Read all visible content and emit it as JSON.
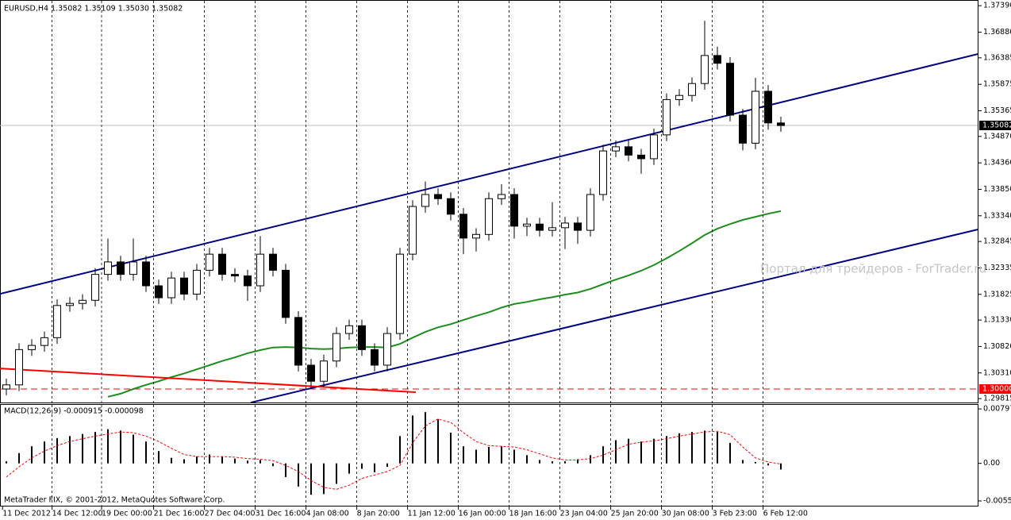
{
  "chart_data": [
    {
      "type": "candlestick",
      "header": "EURUSD,H4  1.35082 1.35109 1.35030 1.35082",
      "watermark": "Портал для трейдеров - ForTrader.ru",
      "xlim": [
        -0.5,
        76.5
      ],
      "xticks": [
        {
          "value": -0.3,
          "label": "11 Dec 2012"
        },
        {
          "value": 3.6,
          "label": "14 Dec 12:00"
        },
        {
          "value": 7.5,
          "label": "19 Dec 00:00"
        },
        {
          "value": 11.6,
          "label": "21 Dec 16:00"
        },
        {
          "value": 15.6,
          "label": "27 Dec 04:00"
        },
        {
          "value": 19.6,
          "label": "31 Dec 16:00"
        },
        {
          "value": 23.6,
          "label": "4 Jan 08:00"
        },
        {
          "value": 27.6,
          "label": "8 Jan 20:00"
        },
        {
          "value": 31.6,
          "label": "11 Jan 12:00"
        },
        {
          "value": 35.6,
          "label": "16 Jan 00:00"
        },
        {
          "value": 39.6,
          "label": "18 Jan 16:00"
        },
        {
          "value": 43.6,
          "label": "23 Jan 04:00"
        },
        {
          "value": 47.6,
          "label": "25 Jan 20:00"
        },
        {
          "value": 51.6,
          "label": "30 Jan 08:00"
        },
        {
          "value": 55.6,
          "label": "3 Feb 23:00"
        },
        {
          "value": 59.6,
          "label": "6 Feb 12:00"
        }
      ],
      "ylim": [
        1.2974,
        1.375
      ],
      "yticks": [
        {
          "value": 1.3739,
          "label": "1.37390"
        },
        {
          "value": 1.3688,
          "label": "1.36880"
        },
        1.36385,
        1.35875,
        1.35365,
        {
          "value": 1.3487,
          "label": "1.34870"
        },
        {
          "value": 1.3436,
          "label": "1.34360"
        },
        {
          "value": 1.3385,
          "label": "1.33850"
        },
        {
          "value": 1.3334,
          "label": "1.33340"
        },
        1.32845,
        1.32335,
        1.31825,
        {
          "value": 1.3133,
          "label": "1.31330"
        },
        {
          "value": 1.3082,
          "label": "1.30820"
        },
        {
          "value": 1.3031,
          "label": "1.30310"
        },
        1.29815
      ],
      "grid": true,
      "up_color": "#ffffff",
      "down_color": "#000000",
      "open": [
        1.3,
        1.3008,
        1.3076,
        1.3084,
        1.3099,
        1.3161,
        1.3165,
        1.3171,
        1.3221,
        1.3245,
        1.3221,
        1.3245,
        1.3199,
        1.3176,
        1.3214,
        1.3183,
        1.3229,
        1.326,
        1.3221,
        1.3218,
        1.3199,
        1.326,
        1.3229,
        1.3138,
        1.3046,
        1.3015,
        1.3054,
        1.3107,
        1.3122,
        1.3076,
        1.3046,
        1.3107,
        1.326,
        1.3352,
        1.3375,
        1.3367,
        1.3337,
        1.3291,
        1.3298,
        1.3367,
        1.3375,
        1.3314,
        1.3318,
        1.3306,
        1.3311,
        1.332,
        1.3306,
        1.3375,
        1.3459,
        1.3467,
        1.3451,
        1.3444,
        1.349,
        1.3558,
        1.3566,
        1.3589,
        1.3643,
        1.3628,
        1.3528,
        1.3474,
        1.3574,
        1.3513
      ],
      "high": [
        1.302,
        1.3088,
        1.3096,
        1.3111,
        1.3173,
        1.3177,
        1.3183,
        1.3233,
        1.329,
        1.3257,
        1.329,
        1.3257,
        1.3211,
        1.3226,
        1.3226,
        1.3241,
        1.3272,
        1.3272,
        1.3233,
        1.323,
        1.3295,
        1.3272,
        1.3241,
        1.315,
        1.3058,
        1.3066,
        1.3119,
        1.3134,
        1.3134,
        1.3088,
        1.3119,
        1.3272,
        1.3364,
        1.34,
        1.3387,
        1.3379,
        1.3349,
        1.331,
        1.3379,
        1.3395,
        1.3387,
        1.333,
        1.333,
        1.336,
        1.3332,
        1.3332,
        1.3387,
        1.3471,
        1.3479,
        1.3479,
        1.3463,
        1.3502,
        1.357,
        1.3578,
        1.3601,
        1.371,
        1.366,
        1.364,
        1.354,
        1.36,
        1.3586,
        1.3525
      ],
      "low": [
        1.2988,
        1.2996,
        1.3064,
        1.3072,
        1.3087,
        1.3149,
        1.3153,
        1.3159,
        1.3209,
        1.3209,
        1.3209,
        1.3187,
        1.3164,
        1.3164,
        1.3171,
        1.3171,
        1.3217,
        1.3209,
        1.3206,
        1.317,
        1.3187,
        1.3217,
        1.3126,
        1.3034,
        1.3,
        1.3003,
        1.3042,
        1.3095,
        1.3064,
        1.3034,
        1.3034,
        1.3095,
        1.3248,
        1.334,
        1.3355,
        1.3325,
        1.326,
        1.3265,
        1.3286,
        1.3355,
        1.329,
        1.3295,
        1.3294,
        1.3294,
        1.327,
        1.328,
        1.3294,
        1.3363,
        1.3447,
        1.3439,
        1.3415,
        1.3432,
        1.3478,
        1.3546,
        1.3554,
        1.3577,
        1.3616,
        1.3516,
        1.346,
        1.3462,
        1.35,
        1.3496
      ],
      "close": [
        1.3008,
        1.3076,
        1.3084,
        1.3099,
        1.3161,
        1.3165,
        1.3171,
        1.3221,
        1.3245,
        1.3221,
        1.3245,
        1.3199,
        1.3176,
        1.3214,
        1.3183,
        1.3229,
        1.326,
        1.3221,
        1.3218,
        1.3199,
        1.326,
        1.3229,
        1.3138,
        1.3046,
        1.3015,
        1.3054,
        1.3107,
        1.3122,
        1.3076,
        1.3046,
        1.3107,
        1.326,
        1.3352,
        1.3375,
        1.3367,
        1.3337,
        1.3291,
        1.3298,
        1.3367,
        1.3375,
        1.3314,
        1.3318,
        1.3306,
        1.3311,
        1.332,
        1.3306,
        1.3375,
        1.3459,
        1.3467,
        1.3451,
        1.3444,
        1.349,
        1.3558,
        1.3566,
        1.3589,
        1.3643,
        1.3628,
        1.3528,
        1.3474,
        1.3574,
        1.3513,
        1.3508
      ],
      "moving_average": {
        "color": "#1e8c1e",
        "values": [
          null,
          null,
          null,
          null,
          null,
          null,
          null,
          null,
          1.2985,
          1.2991,
          1.3,
          1.3008,
          1.3015,
          1.3023,
          1.303,
          1.3038,
          1.3046,
          1.3054,
          1.3061,
          1.3069,
          1.3075,
          1.308,
          1.3081,
          1.308,
          1.3078,
          1.3077,
          1.3078,
          1.308,
          1.3081,
          1.3081,
          1.308,
          1.3087,
          1.3099,
          1.311,
          1.3119,
          1.3125,
          1.3133,
          1.3141,
          1.3148,
          1.3157,
          1.3164,
          1.3168,
          1.3173,
          1.3177,
          1.3182,
          1.3186,
          1.3193,
          1.3202,
          1.3211,
          1.3219,
          1.3228,
          1.3239,
          1.3252,
          1.3266,
          1.3281,
          1.3297,
          1.3309,
          1.3318,
          1.3326,
          1.3332,
          1.3338,
          1.3343
        ]
      },
      "trend_lines": [
        {
          "color": "#000080",
          "from": [
            -0.5,
            1.31835
          ],
          "to": [
            76.5,
            1.36457
          ]
        },
        {
          "color": "#000080",
          "from": [
            19.25,
            1.29739
          ],
          "to": [
            76.5,
            1.33075
          ]
        },
        {
          "color": "#ff0000",
          "from": [
            -0.5,
            1.30397
          ],
          "to": [
            32.25,
            1.29938
          ]
        }
      ],
      "price_lines": [
        {
          "level": 1.35082,
          "color": "#c0c0c0",
          "tag_color": "#000000",
          "style": "solid"
        },
        {
          "level": {
            "value": 1.3,
            "label": "1.30000"
          },
          "color": "#ff0000",
          "tag_color": "#ff0000",
          "style": "dashed"
        }
      ]
    },
    {
      "type": "macd",
      "title": "MACD(12,26,9) -0.000915 -0.000098",
      "footer": "MetaTrader FIX, © 2001-2012, MetaQuotes Software Corp.",
      "ylim": [
        -0.0062,
        0.00868
      ],
      "yticks": [
        0.007975,
        {
          "value": 0,
          "label": "0.00"
        },
        -0.0055
      ],
      "histogram": {
        "color": "#000000",
        "values": [
          0.0003,
          0.0015,
          0.0025,
          0.0032,
          0.0037,
          0.004,
          0.0043,
          0.0046,
          0.005,
          0.0048,
          0.0042,
          0.0032,
          0.0018,
          0.0008,
          0.0006,
          0.001,
          0.0013,
          0.001,
          0.0007,
          0.0004,
          0.0005,
          -0.0004,
          -0.002,
          -0.0034,
          -0.0046,
          -0.0045,
          -0.003,
          -0.0015,
          -0.0008,
          -0.0013,
          -0.0005,
          0.004,
          0.007,
          0.0075,
          0.0065,
          0.0045,
          0.0025,
          0.002,
          0.0024,
          0.0025,
          0.002,
          0.0012,
          0.0005,
          0.0003,
          0.0003,
          0.0006,
          0.0012,
          0.0025,
          0.0034,
          0.0036,
          0.0032,
          0.0036,
          0.004,
          0.0044,
          0.0046,
          0.0048,
          0.0046,
          0.003,
          0.0005,
          0.0002,
          -0.0003,
          -0.0009
        ]
      },
      "signal": {
        "color": "#ff0000",
        "values": [
          -0.002,
          -0.0005,
          0.0008,
          0.0018,
          0.0026,
          0.0032,
          0.0036,
          0.004,
          0.0043,
          0.0046,
          0.0045,
          0.004,
          0.0032,
          0.0022,
          0.0013,
          0.001,
          0.001,
          0.001,
          0.0009,
          0.0007,
          0.0006,
          0.0004,
          -0.0003,
          -0.0012,
          -0.0025,
          -0.0035,
          -0.0038,
          -0.0032,
          -0.0022,
          -0.0017,
          -0.0012,
          -0.0003,
          0.003,
          0.0055,
          0.0065,
          0.006,
          0.0045,
          0.0032,
          0.0026,
          0.0025,
          0.0024,
          0.002,
          0.0014,
          0.0008,
          0.0005,
          0.0005,
          0.0007,
          0.0012,
          0.002,
          0.0028,
          0.0031,
          0.0033,
          0.0036,
          0.004,
          0.0043,
          0.0046,
          0.0047,
          0.0042,
          0.0024,
          0.0008,
          0.0002,
          -0.0001
        ]
      }
    }
  ]
}
